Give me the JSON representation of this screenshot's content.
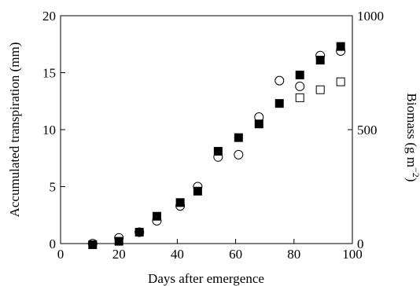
{
  "chart_data": {
    "type": "scatter",
    "title": "",
    "xlabel": "Days after emergence",
    "ylabel_left": "Accumulated transpiration (mm)",
    "ylabel_right_main": "Biomass (g m",
    "ylabel_right_sup": "−2",
    "ylabel_right_close": ")",
    "xlim": [
      0,
      100
    ],
    "ylim_left": [
      0,
      20
    ],
    "ylim_right": [
      0,
      1000
    ],
    "x_ticks": [
      "0",
      "20",
      "40",
      "60",
      "80",
      "100"
    ],
    "y_left_ticks": [
      "0",
      "5",
      "10",
      "15",
      "20"
    ],
    "y_right_ticks": [
      "0",
      "500",
      "1000"
    ],
    "grid": false,
    "legend": "none",
    "series": [
      {
        "marker": "open-circle",
        "axis": "left",
        "x": [
          11,
          20,
          27,
          33,
          41,
          47,
          54,
          61,
          68,
          75,
          82,
          89,
          96
        ],
        "values": [
          0.0,
          0.5,
          1.0,
          2.0,
          3.3,
          5.0,
          7.6,
          7.8,
          11.1,
          14.3,
          13.8,
          16.5,
          16.9
        ]
      },
      {
        "marker": "filled-square",
        "axis": "right",
        "x": [
          11,
          20,
          27,
          33,
          41,
          47,
          54,
          61,
          68,
          75,
          82,
          89,
          96
        ],
        "values": [
          -5,
          10,
          50,
          120,
          180,
          230,
          405,
          465,
          525,
          615,
          740,
          805,
          865
        ]
      },
      {
        "marker": "open-square",
        "axis": "right",
        "x": [
          82,
          89,
          96
        ],
        "values": [
          640,
          675,
          710
        ]
      }
    ]
  }
}
